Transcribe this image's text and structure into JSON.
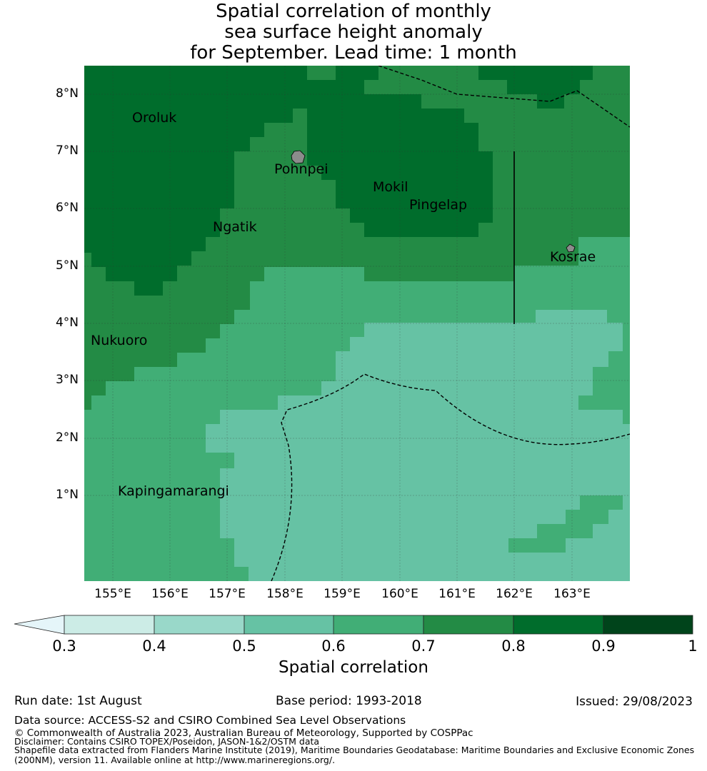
{
  "title": {
    "line1": "Spatial correlation of monthly",
    "line2": "sea surface height anomaly",
    "line3": "for September. Lead time: 1 month"
  },
  "map": {
    "lon_range": [
      154.5,
      164.0
    ],
    "lat_range": [
      -0.25,
      8.5
    ],
    "lat_ticks": [
      "8°N",
      "7°N",
      "6°N",
      "5°N",
      "4°N",
      "3°N",
      "2°N",
      "1°N"
    ],
    "lon_ticks": [
      "155°E",
      "156°E",
      "157°E",
      "158°E",
      "159°E",
      "160°E",
      "161°E",
      "162°E",
      "163°E"
    ],
    "places": [
      {
        "name": "Oroluk",
        "lon": 155.3,
        "lat": 7.6
      },
      {
        "name": "Pohnpei",
        "lon": 157.8,
        "lat": 6.7
      },
      {
        "name": "Mokil",
        "lon": 159.5,
        "lat": 6.4
      },
      {
        "name": "Pingelap",
        "lon": 160.2,
        "lat": 6.05
      },
      {
        "name": "Ngatik",
        "lon": 156.75,
        "lat": 5.6
      },
      {
        "name": "Kosrae",
        "lon": 162.6,
        "lat": 5.15
      },
      {
        "name": "Nukuoro",
        "lon": 154.6,
        "lat": 3.7
      },
      {
        "name": "Kapingamarangi",
        "lon": 155.1,
        "lat": 1.05
      }
    ],
    "land_color": "#8c8c8c"
  },
  "colorbar": {
    "labels": [
      "0.3",
      "0.4",
      "0.5",
      "0.6",
      "0.7",
      "0.8",
      "0.9",
      "1"
    ],
    "colors": [
      "#e5f5f9",
      "#ccece6",
      "#99d8c9",
      "#66c2a4",
      "#41ae76",
      "#238b45",
      "#006d2c",
      "#00441b"
    ],
    "title": "Spatial correlation"
  },
  "footer": {
    "run_date": "Run date: 1st August",
    "base_period": "Base period: 1993-2018",
    "issued": "Issued: 29/08/2023",
    "data_source": "Data source: ACCESS-S2 and CSIRO Combined Sea Level Observations",
    "copyright": "© Commonwealth of Australia 2023, Australian Bureau of Meteorology, Supported by COSPPac",
    "disclaimer": "Disclaimer: Contains CSIRO TOPEX/Poseidon, JASON-1&2/OSTM data",
    "shapefile1": "Shapefile data extracted from Flanders Marine Institute (2019), Maritime Boundaries Geodatabase: Maritime Boundaries and Exclusive Economic Zones",
    "shapefile2": "(200NM), version 11. Available online at http://www.marineregions.org/."
  }
}
